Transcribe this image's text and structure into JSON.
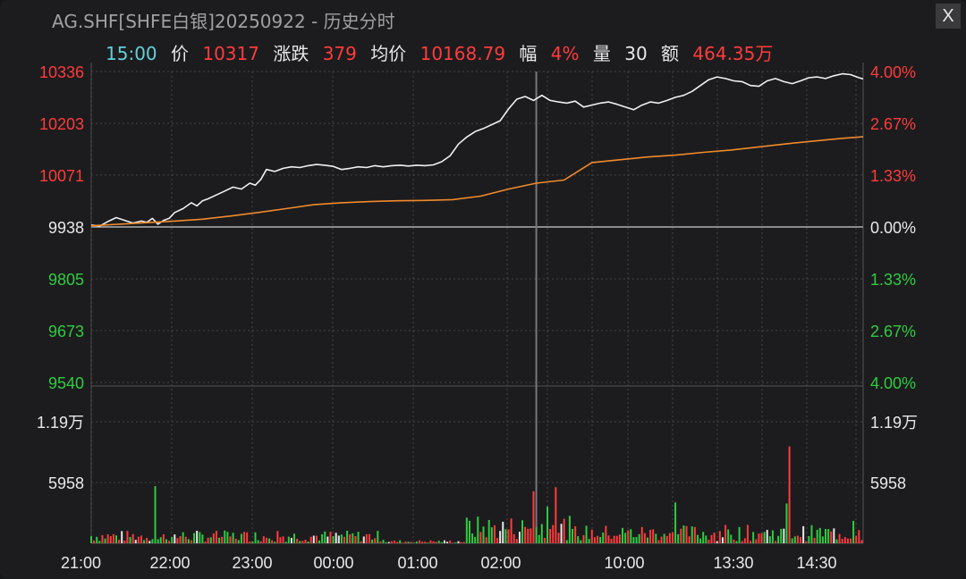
{
  "window": {
    "title": "AG.SHF[SHFE白银]20250922 - 历史分时",
    "close_label": "X"
  },
  "info": {
    "time": "15:00",
    "price_label": "价",
    "price": "10317",
    "change_label": "涨跌",
    "change": "379",
    "avg_label": "均价",
    "avg": "10168.79",
    "pct_label": "幅",
    "pct": "4%",
    "vol_label": "量",
    "vol": "30",
    "amt_label": "额",
    "amt": "464.35万"
  },
  "colors": {
    "price_line": "#f0f0f0",
    "avg_line": "#f08a2c",
    "up": "#ff3b3b",
    "down": "#2ecc40",
    "flat": "#e8e8e8",
    "grid": "#444444",
    "baseline": "#8a8a8a"
  },
  "chart_data": {
    "type": "line",
    "prev_close": 9938,
    "y_ticks": [
      "10336",
      "10203",
      "10071",
      "9938",
      "9805",
      "9673",
      "9540"
    ],
    "pct_ticks": [
      "4.00%",
      "2.67%",
      "1.33%",
      "0.00%",
      "1.33%",
      "2.67%",
      "4.00%"
    ],
    "ylim": [
      9540,
      10336
    ],
    "x_tick_labels": [
      "21:00",
      "22:00",
      "23:00",
      "00:00",
      "01:00",
      "02:00",
      "10:00",
      "13:30",
      "14:30"
    ],
    "volume": {
      "ticks": [
        "1.19万",
        "5958"
      ],
      "ylim": [
        0,
        11916
      ]
    },
    "series": [
      {
        "key": "price",
        "x": [
          0,
          6,
          12,
          18,
          24,
          30,
          36,
          40,
          44,
          48,
          52,
          56,
          60,
          66,
          72,
          76,
          80,
          84,
          90,
          96,
          102,
          108,
          114,
          118,
          122,
          126,
          132,
          138,
          144,
          150,
          156,
          162,
          168,
          174,
          180,
          186,
          192,
          198,
          204,
          210,
          216,
          222,
          228,
          234,
          240,
          246,
          252,
          258,
          264,
          270,
          276,
          282,
          288,
          294,
          300,
          306,
          312,
          318,
          324,
          330,
          336,
          342,
          348,
          354,
          360,
          366,
          372,
          378,
          384,
          390,
          396,
          402,
          408,
          414,
          420,
          426,
          432,
          438,
          444,
          450,
          456,
          462,
          468,
          474,
          480,
          486,
          492,
          498,
          504,
          510,
          516,
          522,
          528,
          534,
          540,
          546,
          552,
          555
        ],
        "values": [
          9943,
          9940,
          9952,
          9962,
          9955,
          9948,
          9953,
          9950,
          9960,
          9945,
          9955,
          9960,
          9975,
          9985,
          10000,
          9992,
          10005,
          10010,
          10020,
          10030,
          10040,
          10035,
          10050,
          10045,
          10060,
          10085,
          10080,
          10088,
          10092,
          10090,
          10095,
          10098,
          10096,
          10093,
          10085,
          10088,
          10092,
          10090,
          10095,
          10092,
          10095,
          10096,
          10094,
          10096,
          10095,
          10097,
          10105,
          10120,
          10150,
          10168,
          10182,
          10190,
          10200,
          10210,
          10240,
          10265,
          10272,
          10262,
          10275,
          10262,
          10258,
          10255,
          10260,
          10245,
          10250,
          10255,
          10258,
          10252,
          10245,
          10238,
          10250,
          10258,
          10255,
          10262,
          10270,
          10275,
          10285,
          10300,
          10315,
          10322,
          10318,
          10312,
          10310,
          10300,
          10298,
          10312,
          10318,
          10310,
          10305,
          10312,
          10320,
          10322,
          10318,
          10325,
          10330,
          10328,
          10320,
          10317
        ]
      },
      {
        "key": "avg",
        "x": [
          0,
          20,
          40,
          60,
          80,
          100,
          120,
          140,
          160,
          180,
          200,
          220,
          240,
          260,
          280,
          300,
          320,
          340,
          360,
          380,
          400,
          420,
          440,
          460,
          480,
          500,
          520,
          540,
          555
        ],
        "values": [
          9941,
          9945,
          9949,
          9953,
          9958,
          9966,
          9975,
          9985,
          9995,
          10000,
          10003,
          10005,
          10006,
          10008,
          10017,
          10035,
          10050,
          10058,
          10103,
          10110,
          10117,
          10122,
          10129,
          10135,
          10143,
          10151,
          10158,
          10165,
          10168.79
        ]
      }
    ]
  }
}
